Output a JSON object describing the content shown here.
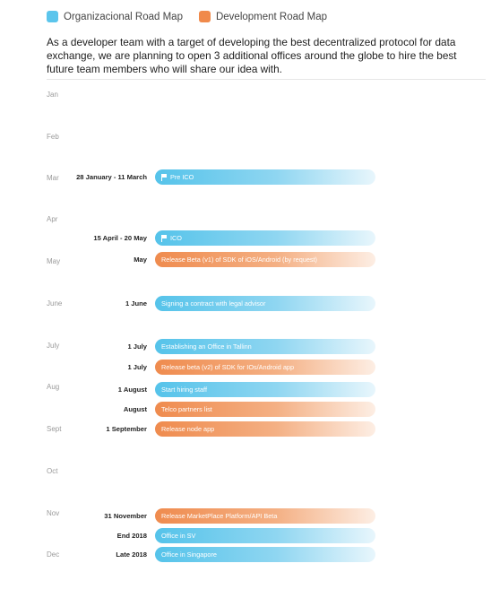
{
  "legend": {
    "org": {
      "label": "Organizacional Road Map",
      "color": "#5bc5ec"
    },
    "dev": {
      "label": "Development Road Map",
      "color": "#f08a4b"
    }
  },
  "intro": "As a developer team with a target of developing the best decentralized protocol for data exchange, we are planning to open 3 additional offices around the globe to hire the best future team members who will share our idea with.",
  "months": [
    "Jan",
    "Feb",
    "Mar",
    "Apr",
    "May",
    "June",
    "July",
    "Aug",
    "Sept",
    "Oct",
    "Nov",
    "Dec"
  ],
  "events": [
    {
      "date": "28 January - 11 March",
      "label": "Pre ICO",
      "track": "org",
      "icon": "flag-icon"
    },
    {
      "date": "15 April - 20 May",
      "label": "ICO",
      "track": "org",
      "icon": "flag-icon"
    },
    {
      "date": "May",
      "label": "Release Beta (v1) of SDK of iOS/Android (by request)",
      "track": "dev"
    },
    {
      "date": "1 June",
      "label": "Signing a contract with legal advisor",
      "track": "org"
    },
    {
      "date": "1 July",
      "label": "Establishing an Office in Tallinn",
      "track": "org"
    },
    {
      "date": "1 July",
      "label": "Release beta (v2) of SDK for IOs/Android app",
      "track": "dev"
    },
    {
      "date": "1 August",
      "label": "Start hiring staff",
      "track": "org"
    },
    {
      "date": "August",
      "label": "Telco partners list",
      "track": "dev"
    },
    {
      "date": "1 September",
      "label": "Release node app",
      "track": "dev"
    },
    {
      "date": "31 November",
      "label": "Release MarketPlace Platform/API Beta",
      "track": "dev"
    },
    {
      "date": "End 2018",
      "label": "Office in SV",
      "track": "org"
    },
    {
      "date": "Late 2018",
      "label": "Office in Singapore",
      "track": "org"
    }
  ]
}
